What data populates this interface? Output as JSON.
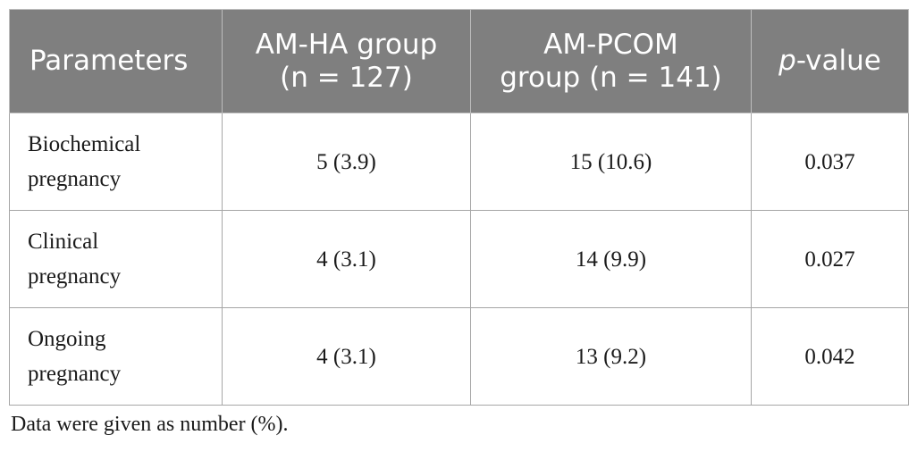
{
  "table": {
    "headers": [
      {
        "lines": [
          "Parameters"
        ]
      },
      {
        "lines": [
          "AM-HA group",
          "(n = 127)"
        ]
      },
      {
        "lines": [
          "AM-PCOM",
          "group (n = 141)"
        ]
      },
      {
        "italic_prefix": "p",
        "rest": "-value"
      }
    ],
    "rows": [
      {
        "param_lines": [
          "Biochemical",
          "pregnancy"
        ],
        "am_ha": "5 (3.9)",
        "am_pcom": "15 (10.6)",
        "p_value": "0.037"
      },
      {
        "param_lines": [
          "Clinical",
          "pregnancy"
        ],
        "am_ha": "4 (3.1)",
        "am_pcom": "14 (9.9)",
        "p_value": "0.027"
      },
      {
        "param_lines": [
          "Ongoing",
          "pregnancy"
        ],
        "am_ha": "4 (3.1)",
        "am_pcom": "13 (9.2)",
        "p_value": "0.042"
      }
    ]
  },
  "footnote": "Data were given as number (%).",
  "colors": {
    "header_bg": "#7f7f7f",
    "header_text": "#ffffff",
    "border": "#a6a6a6"
  }
}
